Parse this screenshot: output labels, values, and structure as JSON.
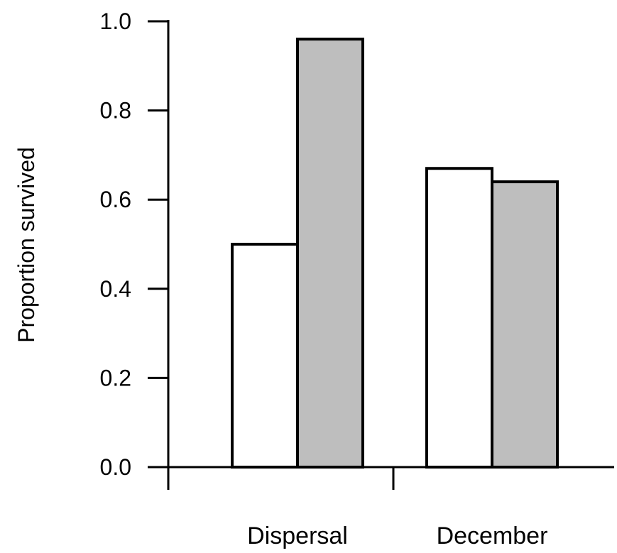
{
  "chart_data": {
    "type": "bar",
    "categories": [
      "Dispersal",
      "December"
    ],
    "series": [
      {
        "values": [
          0.5,
          0.67
        ],
        "color": "#ffffff"
      },
      {
        "values": [
          0.96,
          0.64
        ],
        "color": "#bebebe"
      }
    ],
    "ylabel": "Proportion survived",
    "xlabel": "",
    "ylim": [
      0.0,
      1.0
    ],
    "yticks": [
      "0.0",
      "0.2",
      "0.4",
      "0.6",
      "0.8",
      "1.0"
    ],
    "grid": false,
    "legend": "none"
  }
}
